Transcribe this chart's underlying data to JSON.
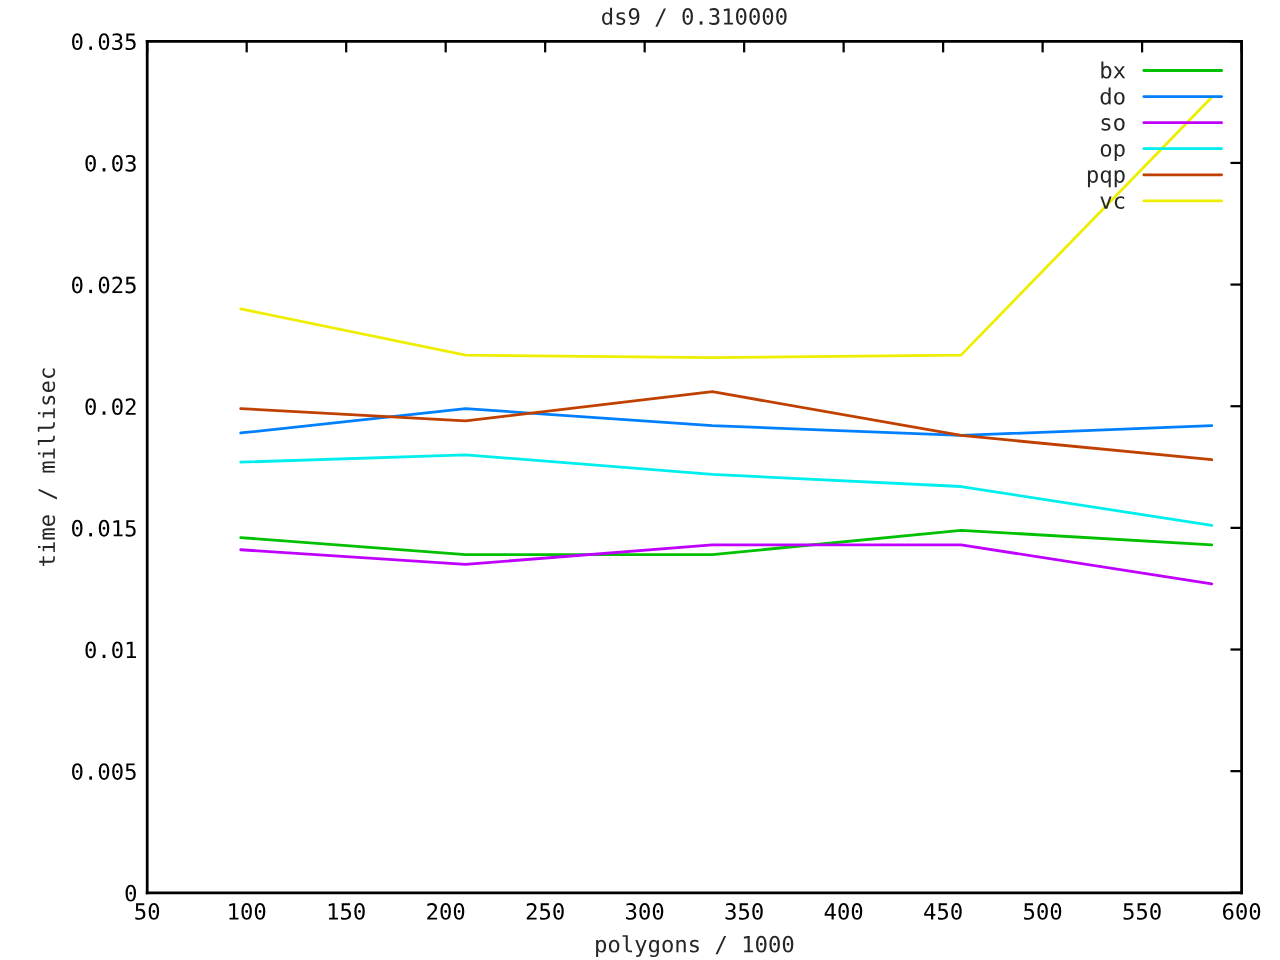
{
  "chart_data": {
    "type": "line",
    "title": "ds9 / 0.310000",
    "xlabel": "polygons / 1000",
    "ylabel": "time / millisec",
    "x": [
      97,
      210,
      334,
      459,
      585
    ],
    "series": [
      {
        "name": "bx",
        "color": "#00c000",
        "values": [
          0.0146,
          0.0139,
          0.0139,
          0.0149,
          0.0143
        ]
      },
      {
        "name": "do",
        "color": "#0080ff",
        "values": [
          0.0189,
          0.0199,
          0.0192,
          0.0188,
          0.0192
        ]
      },
      {
        "name": "so",
        "color": "#c000ff",
        "values": [
          0.0141,
          0.0135,
          0.0143,
          0.0143,
          0.0127
        ]
      },
      {
        "name": "op",
        "color": "#00eeee",
        "values": [
          0.0177,
          0.018,
          0.0172,
          0.0167,
          0.0151
        ]
      },
      {
        "name": "pqp",
        "color": "#c04000",
        "values": [
          0.0199,
          0.0194,
          0.0206,
          0.0188,
          0.0178
        ]
      },
      {
        "name": "vc",
        "color": "#eeee00",
        "values": [
          0.024,
          0.0221,
          0.022,
          0.0221,
          0.0327
        ]
      }
    ],
    "xlim": [
      50,
      600
    ],
    "xticks": [
      50,
      100,
      150,
      200,
      250,
      300,
      350,
      400,
      450,
      500,
      550,
      600
    ],
    "ylim": [
      0,
      0.035
    ],
    "yticks": [
      0,
      0.005,
      0.01,
      0.015,
      0.02,
      0.025,
      0.03,
      0.035
    ],
    "grid": false,
    "legend": "top right",
    "marker": "none",
    "line_style": "solid"
  }
}
